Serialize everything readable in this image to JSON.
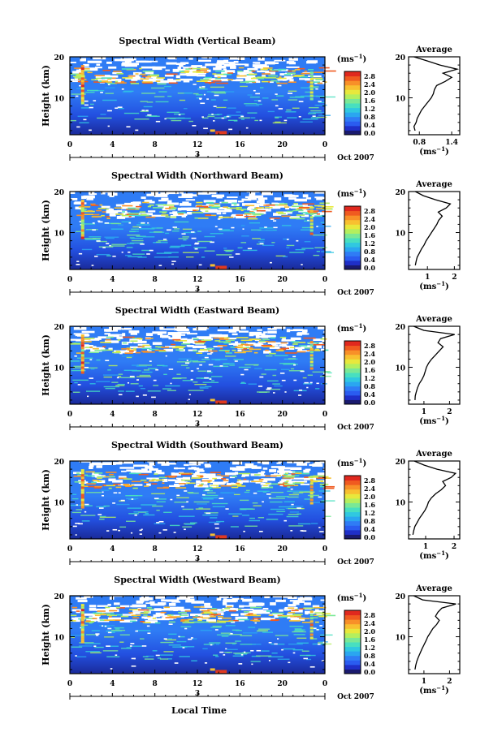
{
  "figure": {
    "xlabel": "Local Time",
    "date_label": "Oct 2007",
    "day_label": "3",
    "ylabel": "Height (km)",
    "unit_label": "(ms",
    "unit_exp": "−1",
    "average_title": "Average"
  },
  "colorbar": {
    "ticks": [
      "2.8",
      "2.4",
      "2.0",
      "1.6",
      "1.2",
      "0.8",
      "0.4",
      "0.0"
    ],
    "colors": [
      "#1a1a6e",
      "#1f2fc8",
      "#2a5cf0",
      "#2f7cf5",
      "#2aa6f0",
      "#30c8e0",
      "#48dfc0",
      "#7ae896",
      "#b4ef5e",
      "#e8e83c",
      "#f8c030",
      "#f89028",
      "#f05a20",
      "#e0281e"
    ]
  },
  "chart_data": [
    {
      "type": "heatmap",
      "title": "Spectral Width (Vertical Beam)",
      "x_ticks": [
        "0",
        "4",
        "8",
        "12",
        "16",
        "20",
        "0"
      ],
      "xlim": [
        0,
        24
      ],
      "y_ticks": [
        "20",
        "10"
      ],
      "ylim": [
        1,
        20
      ],
      "clim": [
        0.0,
        2.8
      ],
      "unit": "ms−1",
      "profile": {
        "title": "Average",
        "x_ticks": [
          "0.8",
          "1.4"
        ],
        "xlim": [
          0.6,
          1.55
        ],
        "heights": [
          2,
          3,
          4,
          5,
          6,
          7,
          8,
          9,
          10,
          11,
          12,
          13,
          14,
          15,
          16,
          17,
          18,
          19,
          20
        ],
        "values": [
          0.72,
          0.7,
          0.74,
          0.76,
          0.8,
          0.84,
          0.9,
          0.96,
          1.02,
          1.06,
          1.08,
          1.12,
          1.28,
          1.4,
          1.24,
          1.5,
          1.18,
          0.95,
          0.7
        ]
      }
    },
    {
      "type": "heatmap",
      "title": "Spectral Width (Northward Beam)",
      "x_ticks": [
        "0",
        "4",
        "8",
        "12",
        "16",
        "20",
        "0"
      ],
      "xlim": [
        0,
        24
      ],
      "y_ticks": [
        "20",
        "10"
      ],
      "ylim": [
        1,
        20
      ],
      "clim": [
        0.0,
        2.8
      ],
      "unit": "ms−1",
      "profile": {
        "title": "Average",
        "x_ticks": [
          "1",
          "2"
        ],
        "xlim": [
          0.3,
          2.2
        ],
        "heights": [
          2,
          3,
          4,
          5,
          6,
          7,
          8,
          9,
          10,
          11,
          12,
          13,
          14,
          15,
          16,
          17,
          18,
          19,
          20
        ],
        "values": [
          0.55,
          0.58,
          0.62,
          0.7,
          0.78,
          0.88,
          0.95,
          1.05,
          1.15,
          1.25,
          1.35,
          1.42,
          1.55,
          1.4,
          1.7,
          1.85,
          1.3,
          0.85,
          0.55
        ]
      }
    },
    {
      "type": "heatmap",
      "title": "Spectral Width (Eastward Beam)",
      "x_ticks": [
        "0",
        "4",
        "8",
        "12",
        "16",
        "20",
        "0"
      ],
      "xlim": [
        0,
        24
      ],
      "y_ticks": [
        "20",
        "10"
      ],
      "ylim": [
        1,
        20
      ],
      "clim": [
        0.0,
        2.8
      ],
      "unit": "ms−1",
      "profile": {
        "title": "Average",
        "x_ticks": [
          "1",
          "2"
        ],
        "xlim": [
          0.4,
          2.4
        ],
        "heights": [
          2,
          3,
          4,
          5,
          6,
          7,
          8,
          9,
          10,
          11,
          12,
          13,
          14,
          15,
          16,
          17,
          18,
          19,
          20
        ],
        "values": [
          0.65,
          0.66,
          0.7,
          0.75,
          0.82,
          0.92,
          1.0,
          1.05,
          1.1,
          1.18,
          1.3,
          1.45,
          1.6,
          1.75,
          1.55,
          1.65,
          2.2,
          1.0,
          0.6
        ]
      }
    },
    {
      "type": "heatmap",
      "title": "Spectral Width (Southward Beam)",
      "x_ticks": [
        "0",
        "4",
        "8",
        "12",
        "16",
        "20",
        "0"
      ],
      "xlim": [
        0,
        24
      ],
      "y_ticks": [
        "20",
        "10"
      ],
      "ylim": [
        1,
        20
      ],
      "clim": [
        0.0,
        2.8
      ],
      "unit": "ms−1",
      "profile": {
        "title": "Average",
        "x_ticks": [
          "1",
          "2"
        ],
        "xlim": [
          0.4,
          2.2
        ],
        "heights": [
          2,
          3,
          4,
          5,
          6,
          7,
          8,
          9,
          10,
          11,
          12,
          13,
          14,
          15,
          16,
          17,
          18,
          19,
          20
        ],
        "values": [
          0.55,
          0.58,
          0.62,
          0.7,
          0.78,
          0.88,
          0.98,
          1.05,
          1.1,
          1.2,
          1.35,
          1.55,
          1.7,
          1.6,
          1.9,
          2.05,
          1.4,
          0.95,
          0.6
        ]
      }
    },
    {
      "type": "heatmap",
      "title": "Spectral Width (Westward Beam)",
      "x_ticks": [
        "0",
        "4",
        "8",
        "12",
        "16",
        "20",
        "0"
      ],
      "xlim": [
        0,
        24
      ],
      "y_ticks": [
        "20",
        "10"
      ],
      "ylim": [
        1,
        20
      ],
      "clim": [
        0.0,
        2.8
      ],
      "unit": "ms−1",
      "profile": {
        "title": "Average",
        "x_ticks": [
          "1",
          "2"
        ],
        "xlim": [
          0.4,
          2.4
        ],
        "heights": [
          2,
          3,
          4,
          5,
          6,
          7,
          8,
          9,
          10,
          11,
          12,
          13,
          14,
          15,
          16,
          17,
          18,
          19,
          20
        ],
        "values": [
          0.65,
          0.68,
          0.72,
          0.78,
          0.85,
          0.92,
          1.0,
          1.08,
          1.15,
          1.25,
          1.35,
          1.5,
          1.6,
          1.45,
          1.55,
          1.7,
          2.25,
          0.95,
          0.6
        ]
      }
    }
  ]
}
